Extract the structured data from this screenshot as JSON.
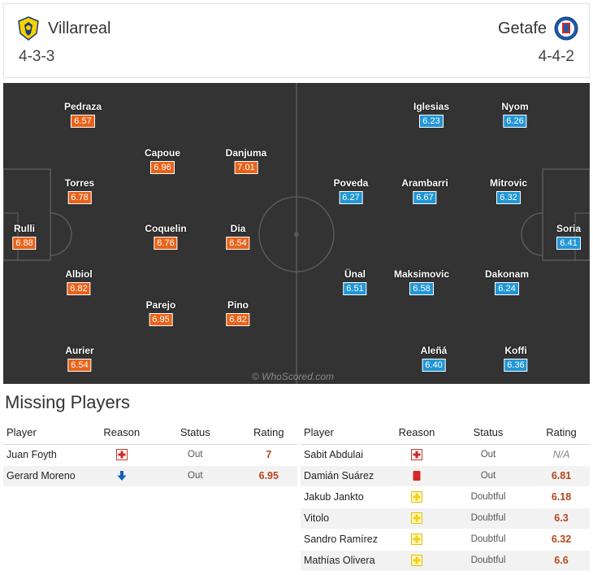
{
  "home": {
    "name": "Villarreal",
    "formation": "4-3-3",
    "players": [
      {
        "name": "Pedraza",
        "rating": "6.57"
      },
      {
        "name": "Torres",
        "rating": "6.78"
      },
      {
        "name": "Rulli",
        "rating": "6.88"
      },
      {
        "name": "Albiol",
        "rating": "6.82"
      },
      {
        "name": "Aurier",
        "rating": "6.54"
      },
      {
        "name": "Capoue",
        "rating": "6.96"
      },
      {
        "name": "Coquelin",
        "rating": "6.76"
      },
      {
        "name": "Parejo",
        "rating": "6.95"
      },
      {
        "name": "Danjuma",
        "rating": "7.01"
      },
      {
        "name": "Dia",
        "rating": "6.54"
      },
      {
        "name": "Pino",
        "rating": "6.82"
      }
    ]
  },
  "away": {
    "name": "Getafe",
    "formation": "4-4-2",
    "players": [
      {
        "name": "Iglesias",
        "rating": "6.23"
      },
      {
        "name": "Nyom",
        "rating": "6.26"
      },
      {
        "name": "Poveda",
        "rating": "6.27"
      },
      {
        "name": "Arambarri",
        "rating": "6.67"
      },
      {
        "name": "Mitrovic",
        "rating": "6.32"
      },
      {
        "name": "Soria",
        "rating": "6.41"
      },
      {
        "name": "Ünal",
        "rating": "6.51"
      },
      {
        "name": "Maksimovic",
        "rating": "6.58"
      },
      {
        "name": "Dakonam",
        "rating": "6.24"
      },
      {
        "name": "Aleñá",
        "rating": "6.40"
      },
      {
        "name": "Koffi",
        "rating": "6.36"
      }
    ]
  },
  "watermark": "© WhoScored.com",
  "missing": {
    "title": "Missing Players",
    "headers": {
      "player": "Player",
      "reason": "Reason",
      "status": "Status",
      "rating": "Rating"
    },
    "home": [
      {
        "player": "Juan Foyth",
        "reason_icon": "injury-cross-icon",
        "status": "Out",
        "rating": "7"
      },
      {
        "player": "Gerard Moreno",
        "reason_icon": "down-arrow-icon",
        "status": "Out",
        "rating": "6.95"
      }
    ],
    "away": [
      {
        "player": "Sabit Abdulai",
        "reason_icon": "injury-cross-icon",
        "status": "Out",
        "rating": "N/A"
      },
      {
        "player": "Damián Suárez",
        "reason_icon": "red-card-icon",
        "status": "Out",
        "rating": "6.81"
      },
      {
        "player": "Jakub Jankto",
        "reason_icon": "doubtful-cross-icon",
        "status": "Doubtful",
        "rating": "6.18"
      },
      {
        "player": "Vitolo",
        "reason_icon": "doubtful-cross-icon",
        "status": "Doubtful",
        "rating": "6.3"
      },
      {
        "player": "Sandro Ramírez",
        "reason_icon": "doubtful-cross-icon",
        "status": "Doubtful",
        "rating": "6.32"
      },
      {
        "player": "Mathías Olivera",
        "reason_icon": "doubtful-cross-icon",
        "status": "Doubtful",
        "rating": "6.6"
      }
    ]
  },
  "colors": {
    "home_rating": "#e8631a",
    "away_rating": "#2196d6",
    "pitch": "#333333",
    "missing_rating": "#b5461d"
  }
}
